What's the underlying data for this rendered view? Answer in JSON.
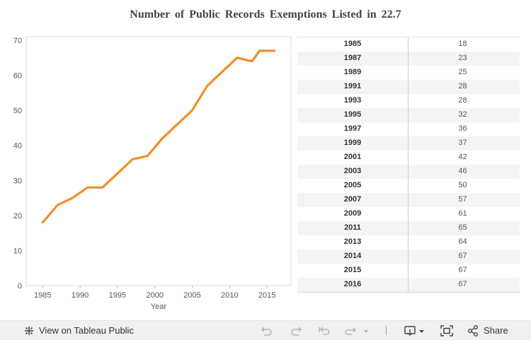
{
  "title": "Number of Public Records Exemptions Listed in 22.7",
  "chart_data": {
    "type": "line",
    "xlabel": "Year",
    "ylabel": "",
    "xlim": [
      1982.8,
      2018.2
    ],
    "ylim": [
      0,
      71
    ],
    "xticks": [
      1985,
      1990,
      1995,
      2000,
      2005,
      2010,
      2015
    ],
    "yticks": [
      0,
      10,
      20,
      30,
      40,
      50,
      60,
      70
    ],
    "series": [
      {
        "color": "#f28e2b",
        "points": [
          [
            1985,
            18
          ],
          [
            1987,
            23
          ],
          [
            1989,
            25
          ],
          [
            1991,
            28
          ],
          [
            1993,
            28
          ],
          [
            1995,
            32
          ],
          [
            1997,
            36
          ],
          [
            1999,
            37
          ],
          [
            2001,
            42
          ],
          [
            2003,
            46
          ],
          [
            2005,
            50
          ],
          [
            2007,
            57
          ],
          [
            2009,
            61
          ],
          [
            2011,
            65
          ],
          [
            2013,
            64
          ],
          [
            2014,
            67
          ],
          [
            2015,
            67
          ],
          [
            2016,
            67
          ]
        ]
      }
    ],
    "grid": false,
    "legend": "none"
  },
  "table": {
    "rows": [
      {
        "year": "1985",
        "value": "18"
      },
      {
        "year": "1987",
        "value": "23"
      },
      {
        "year": "1989",
        "value": "25"
      },
      {
        "year": "1991",
        "value": "28"
      },
      {
        "year": "1993",
        "value": "28"
      },
      {
        "year": "1995",
        "value": "32"
      },
      {
        "year": "1997",
        "value": "36"
      },
      {
        "year": "1999",
        "value": "37"
      },
      {
        "year": "2001",
        "value": "42"
      },
      {
        "year": "2003",
        "value": "46"
      },
      {
        "year": "2005",
        "value": "50"
      },
      {
        "year": "2007",
        "value": "57"
      },
      {
        "year": "2009",
        "value": "61"
      },
      {
        "year": "2011",
        "value": "65"
      },
      {
        "year": "2013",
        "value": "64"
      },
      {
        "year": "2014",
        "value": "67"
      },
      {
        "year": "2015",
        "value": "67"
      },
      {
        "year": "2016",
        "value": "67"
      }
    ]
  },
  "toolbar": {
    "view_label": "View on Tableau Public",
    "share_label": "Share",
    "icons": [
      "tableau-logo-icon",
      "undo-icon",
      "redo-icon",
      "revert-icon",
      "refresh-icon",
      "download-icon",
      "fullscreen-icon",
      "share-icon"
    ]
  }
}
